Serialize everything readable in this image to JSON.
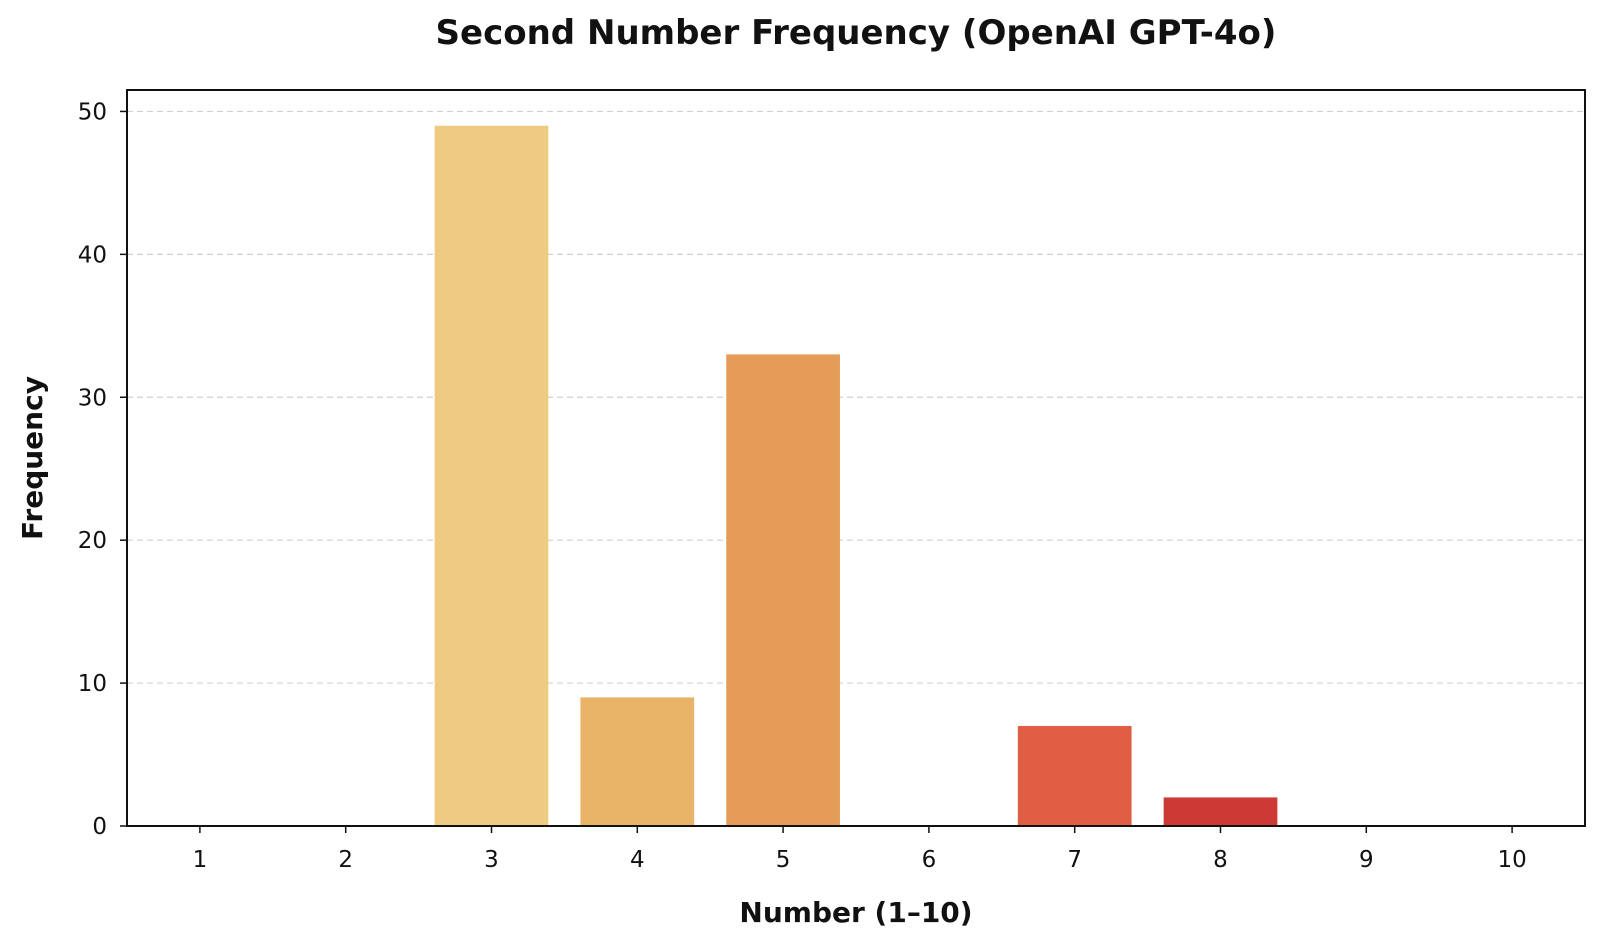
{
  "chart_data": {
    "type": "bar",
    "title": "Second Number Frequency (OpenAI GPT-4o)",
    "xlabel": "Number (1–10)",
    "ylabel": "Frequency",
    "categories": [
      "1",
      "2",
      "3",
      "4",
      "5",
      "6",
      "7",
      "8",
      "9",
      "10"
    ],
    "values": [
      0,
      0,
      49,
      9,
      33,
      0,
      7,
      2,
      0,
      0
    ],
    "colors": [
      "#fdf2b4",
      "#f8dd95",
      "#eecb80",
      "#e8b366",
      "#e59c58",
      "#e3824a",
      "#e05e43",
      "#cd3a36",
      "#b21f30",
      "#8d1230"
    ],
    "yticks": [
      0,
      10,
      20,
      30,
      40,
      50
    ],
    "ylim": [
      0,
      51.5
    ],
    "grid": true
  }
}
